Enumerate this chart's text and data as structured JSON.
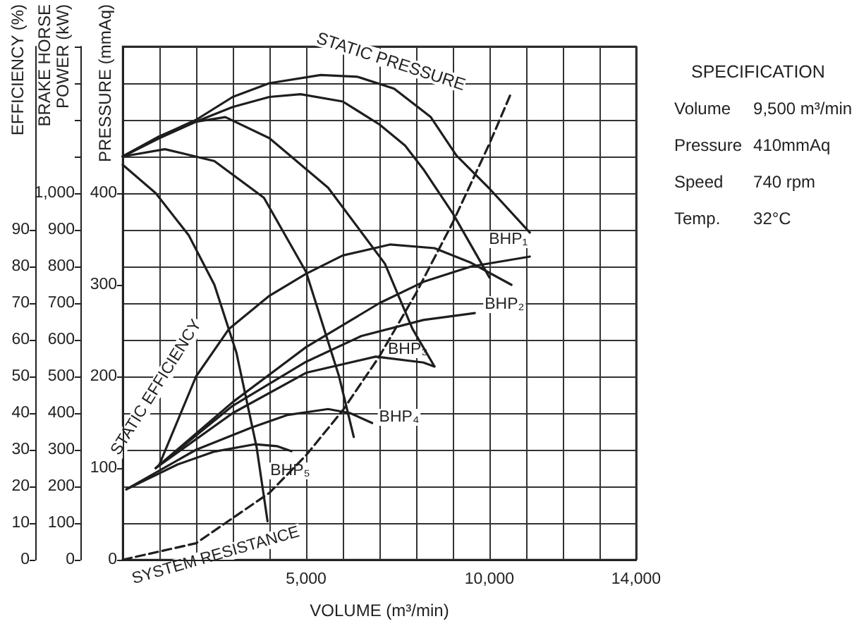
{
  "chart_data": {
    "type": "line",
    "xlabel": "VOLUME (m³/min)",
    "ylabel": "PRESSURE (mmAq)",
    "y2label": "BRAKE HORSE POWER (kW)",
    "y3label": "EFFICIENCY (%)",
    "xlim": [
      0,
      14000
    ],
    "xticks": [
      {
        "value": 0,
        "label": null
      },
      {
        "value": 1000,
        "label": null
      },
      {
        "value": 2000,
        "label": null
      },
      {
        "value": 3000,
        "label": null
      },
      {
        "value": 4000,
        "label": null
      },
      {
        "value": 5000,
        "label": "5,000"
      },
      {
        "value": 6000,
        "label": null
      },
      {
        "value": 7000,
        "label": null
      },
      {
        "value": 8000,
        "label": null
      },
      {
        "value": 9000,
        "label": null
      },
      {
        "value": 10000,
        "label": "10,000"
      },
      {
        "value": 11000,
        "label": null
      },
      {
        "value": 12000,
        "label": null
      },
      {
        "value": 13000,
        "label": null
      },
      {
        "value": 14000,
        "label": "14,000"
      }
    ],
    "ylim": [
      0,
      560
    ],
    "yticks": [
      0,
      100,
      200,
      300,
      400
    ],
    "y2lim": [
      0,
      1400
    ],
    "y2ticks": [
      0,
      100,
      200,
      300,
      400,
      500,
      600,
      700,
      800,
      900,
      {
        "value": 1000,
        "label": "1,000"
      },
      {
        "value": 1100,
        "label": null
      },
      {
        "value": 1200,
        "label": null
      },
      {
        "value": 1300,
        "label": null
      },
      {
        "value": 1400,
        "label": null
      }
    ],
    "y3lim": [
      0,
      140
    ],
    "y3ticks": [
      0,
      10,
      20,
      30,
      40,
      50,
      60,
      70,
      80,
      90
    ],
    "grid": true,
    "line_style": "solid",
    "series": [
      {
        "color": "#1e1e1e",
        "x": [
          0,
          1000,
          2000,
          3000,
          4000,
          5400,
          6400,
          7400,
          8400,
          9100,
          10000,
          11100
        ],
        "values": [
          440,
          462,
          480,
          505,
          520,
          529,
          527,
          514,
          483,
          441,
          405,
          357
        ]
      },
      {
        "color": "#1e1e1e",
        "x": [
          0,
          1000,
          2000,
          3000,
          4000,
          4850,
          6000,
          7000,
          7700,
          8200,
          9000,
          10000
        ],
        "values": [
          440,
          460,
          478,
          494,
          505,
          508,
          500,
          475,
          452,
          426,
          378,
          308
        ]
      },
      {
        "color": "#1e1e1e",
        "x": [
          0,
          1000,
          2000,
          2800,
          4000,
          5600,
          7150,
          7900,
          8500
        ],
        "values": [
          440,
          462,
          478,
          483,
          460,
          406,
          323,
          252,
          211
        ]
      },
      {
        "color": "#1e1e1e",
        "x": [
          0,
          1150,
          2500,
          3850,
          5000,
          5900,
          6300
        ],
        "values": [
          440,
          448,
          435,
          395,
          314,
          200,
          134
        ]
      },
      {
        "color": "#1e1e1e",
        "x": [
          0,
          900,
          1800,
          2500,
          3100,
          3650,
          3950
        ],
        "values": [
          431,
          400,
          354,
          300,
          226,
          123,
          42
        ]
      },
      {
        "name": "BHP₁",
        "color": "#1e1e1e",
        "axis": "y2",
        "x": [
          900,
          3000,
          5000,
          7000,
          8200,
          9500,
          11100
        ],
        "values": [
          250,
          430,
          580,
          700,
          758,
          800,
          827
        ]
      },
      {
        "name": "BHP₂",
        "color": "#1e1e1e",
        "axis": "y2",
        "x": [
          900,
          3000,
          5000,
          6500,
          8200,
          9600
        ],
        "values": [
          250,
          420,
          540,
          610,
          654,
          673
        ]
      },
      {
        "name": "BHP₃",
        "color": "#1e1e1e",
        "axis": "y2",
        "x": [
          900,
          3000,
          5000,
          6900,
          8200,
          8500
        ],
        "values": [
          250,
          400,
          510,
          554,
          538,
          527
        ]
      },
      {
        "name": "BHP₄",
        "color": "#1e1e1e",
        "axis": "y2",
        "x": [
          100,
          2000,
          3500,
          4500,
          5600,
          6200,
          6800
        ],
        "values": [
          192,
          300,
          360,
          395,
          411,
          400,
          373
        ]
      },
      {
        "name": "BHP₅",
        "color": "#1e1e1e",
        "axis": "y2",
        "x": [
          100,
          1500,
          2500,
          3600,
          4200,
          4600
        ],
        "values": [
          192,
          260,
          295,
          315,
          310,
          296
        ]
      },
      {
        "name": "STATIC EFFICIENCY",
        "color": "#1e1e1e",
        "axis": "y3",
        "x": [
          1000,
          2000,
          2900,
          4000,
          5000,
          6000,
          7300,
          8500,
          9500,
          10600
        ],
        "values": [
          26,
          50,
          63,
          72,
          78,
          83,
          86,
          85,
          81,
          75
        ]
      },
      {
        "name": "SYSTEM RESISTANCE",
        "color": "#1e1e1e",
        "line_style": "dashed",
        "x": [
          0,
          2000,
          4000,
          5000,
          6000,
          7000,
          8000,
          9000,
          10000,
          10600
        ],
        "values": [
          0,
          18,
          73,
          114,
          163,
          222,
          291,
          368,
          454,
          510
        ]
      }
    ],
    "annotations": [
      "STATIC PRESSURE",
      "SPECIFICATION",
      "Volume",
      "9,500 m³/min",
      "Pressure",
      "410mmAq",
      "Speed",
      "740 rpm",
      "Temp.",
      "32°C"
    ]
  }
}
